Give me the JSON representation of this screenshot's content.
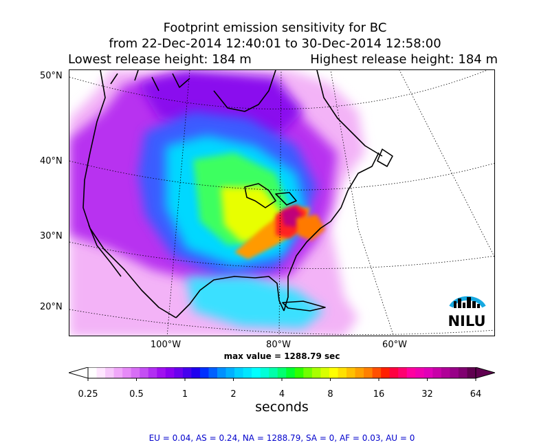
{
  "title": {
    "line1": "Footprint emission sensitivity for BC",
    "line2": "from 22-Dec-2014 12:40:01 to 30-Dec-2014 12:58:00",
    "lowest_release": "Lowest release height: 184 m",
    "highest_release": "Highest release height: 184 m"
  },
  "map": {
    "lat_labels": [
      "50°N",
      "40°N",
      "30°N",
      "20°N"
    ],
    "lon_labels": [
      "100°W",
      "80°W",
      "60°W"
    ]
  },
  "max_value": "max value = 1288.79 sec",
  "colorbar": {
    "tick_labels": [
      "0.25",
      "0.5",
      "1",
      "2",
      "4",
      "8",
      "16",
      "32",
      "64"
    ],
    "unit": "seconds",
    "colors": [
      "#ffffff",
      "#ffe6ff",
      "#f7c8fb",
      "#f0a7f9",
      "#e68af7",
      "#d76ef5",
      "#c44ff3",
      "#b22ef2",
      "#a010f0",
      "#8a00f0",
      "#6b00ee",
      "#4600ee",
      "#2000f0",
      "#0030ff",
      "#0060ff",
      "#0090ff",
      "#00b0ff",
      "#00d0ff",
      "#00e6ff",
      "#00ffff",
      "#00ffd8",
      "#00ffaa",
      "#00ff70",
      "#00ff30",
      "#30ff00",
      "#70ff00",
      "#a8ff00",
      "#d8ff00",
      "#ffff00",
      "#ffe000",
      "#ffc000",
      "#ffa000",
      "#ff8000",
      "#ff5000",
      "#ff2000",
      "#ff0040",
      "#ff0070",
      "#ff00a0",
      "#f000b0",
      "#e000b8",
      "#c800a8",
      "#b00098",
      "#980088",
      "#800070",
      "#600050"
    ]
  },
  "region_summary": "EU = 0.04,  AS = 0.24,  NA = 1288.79,  SA = 0,  AF = 0.03,  AU = 0",
  "logo_text": "NILU"
}
